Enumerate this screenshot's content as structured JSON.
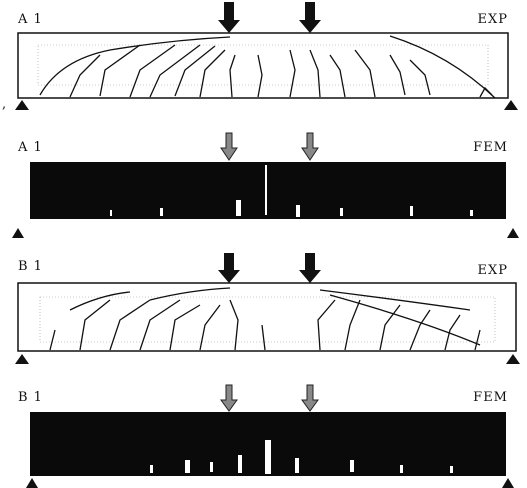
{
  "panels": [
    {
      "label": "A 1",
      "method": "EXP"
    },
    {
      "label": "A 1",
      "method": "FEM"
    },
    {
      "label": "B 1",
      "method": "EXP"
    },
    {
      "label": "B 1",
      "method": "FEM"
    }
  ],
  "stray_mark": ","
}
